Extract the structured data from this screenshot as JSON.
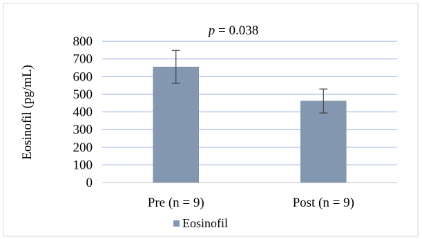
{
  "chart_data": {
    "type": "bar",
    "categories": [
      "Pre (n = 9)",
      "Post (n = 9)"
    ],
    "series": [
      {
        "name": "Eosinofil",
        "values": [
          655,
          462
        ],
        "error": [
          93,
          68
        ]
      }
    ],
    "ylabel": "Eosinofil  (pg/mL)",
    "xlabel": "",
    "ylim": [
      0,
      800
    ],
    "yticks": [
      0,
      100,
      200,
      300,
      400,
      500,
      600,
      700,
      800
    ],
    "annotation": {
      "prefix": "p",
      "text": " = 0.038"
    },
    "legend_position": "bottom",
    "grid": true,
    "colors": {
      "bar": "#8497B0",
      "bar_edge": "#7286A3",
      "grid": "#8EA9DB",
      "frame": "#D9D9D9",
      "error": "#404040"
    }
  }
}
